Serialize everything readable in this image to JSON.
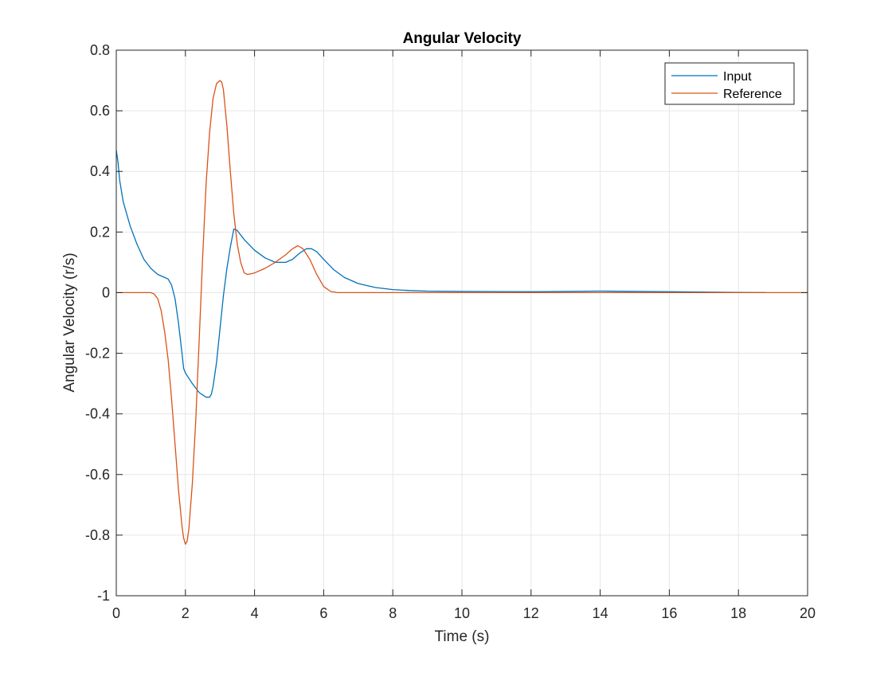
{
  "chart_data": {
    "type": "line",
    "title": "Angular Velocity",
    "xlabel": "Time (s)",
    "ylabel": "Angular Velocity (r/s)",
    "xlim": [
      0,
      20
    ],
    "ylim": [
      -1,
      0.8
    ],
    "xticks": [
      0,
      2,
      4,
      6,
      8,
      10,
      12,
      14,
      16,
      18,
      20
    ],
    "yticks": [
      -1,
      -0.8,
      -0.6,
      -0.4,
      -0.2,
      0,
      0.2,
      0.4,
      0.6,
      0.8
    ],
    "xtick_labels": [
      "0",
      "2",
      "4",
      "6",
      "8",
      "10",
      "12",
      "14",
      "16",
      "18",
      "20"
    ],
    "ytick_labels": [
      "-1",
      "-0.8",
      "-0.6",
      "-0.4",
      "-0.2",
      "0",
      "0.2",
      "0.4",
      "0.6",
      "0.8"
    ],
    "grid": true,
    "legend_position": "top-right",
    "series": [
      {
        "name": "Input",
        "color": "#0072BD",
        "x": [
          0,
          0.05,
          0.1,
          0.2,
          0.4,
          0.6,
          0.8,
          1.0,
          1.2,
          1.4,
          1.5,
          1.6,
          1.7,
          1.8,
          1.9,
          1.95,
          2.0,
          2.2,
          2.4,
          2.6,
          2.7,
          2.75,
          2.8,
          2.9,
          3.0,
          3.1,
          3.2,
          3.3,
          3.4,
          3.5,
          3.7,
          4.0,
          4.3,
          4.6,
          4.9,
          5.1,
          5.3,
          5.5,
          5.65,
          5.8,
          6.0,
          6.3,
          6.6,
          7.0,
          7.5,
          8.0,
          8.5,
          9.0,
          10.0,
          12.0,
          14.0,
          16.0,
          18.0,
          18.8
        ],
        "y": [
          0.47,
          0.43,
          0.37,
          0.3,
          0.22,
          0.16,
          0.11,
          0.08,
          0.06,
          0.05,
          0.045,
          0.025,
          -0.02,
          -0.1,
          -0.2,
          -0.25,
          -0.265,
          -0.3,
          -0.33,
          -0.345,
          -0.345,
          -0.335,
          -0.31,
          -0.23,
          -0.12,
          -0.01,
          0.08,
          0.15,
          0.21,
          0.205,
          0.175,
          0.14,
          0.115,
          0.1,
          0.1,
          0.11,
          0.13,
          0.145,
          0.145,
          0.135,
          0.11,
          0.075,
          0.05,
          0.03,
          0.017,
          0.01,
          0.007,
          0.005,
          0.004,
          0.003,
          0.005,
          0.003,
          0.001,
          0.0
        ]
      },
      {
        "name": "Reference",
        "color": "#D95319",
        "x": [
          0,
          1.0,
          1.1,
          1.2,
          1.3,
          1.4,
          1.5,
          1.6,
          1.7,
          1.8,
          1.9,
          1.95,
          2.0,
          2.05,
          2.1,
          2.2,
          2.3,
          2.4,
          2.5,
          2.6,
          2.7,
          2.8,
          2.9,
          3.0,
          3.05,
          3.1,
          3.2,
          3.3,
          3.4,
          3.5,
          3.6,
          3.7,
          3.8,
          4.0,
          4.3,
          4.6,
          4.9,
          5.1,
          5.25,
          5.4,
          5.6,
          5.8,
          6.0,
          6.2,
          6.4,
          7.0,
          10.0,
          15.0,
          20.0
        ],
        "y": [
          0,
          0,
          -0.005,
          -0.02,
          -0.06,
          -0.13,
          -0.22,
          -0.35,
          -0.5,
          -0.65,
          -0.77,
          -0.81,
          -0.83,
          -0.82,
          -0.78,
          -0.63,
          -0.42,
          -0.15,
          0.12,
          0.36,
          0.53,
          0.64,
          0.69,
          0.7,
          0.695,
          0.67,
          0.55,
          0.4,
          0.26,
          0.16,
          0.1,
          0.065,
          0.06,
          0.065,
          0.08,
          0.1,
          0.125,
          0.145,
          0.155,
          0.145,
          0.11,
          0.06,
          0.02,
          0.004,
          0.0,
          0.0,
          0.0,
          0.0,
          0.0
        ]
      }
    ]
  }
}
